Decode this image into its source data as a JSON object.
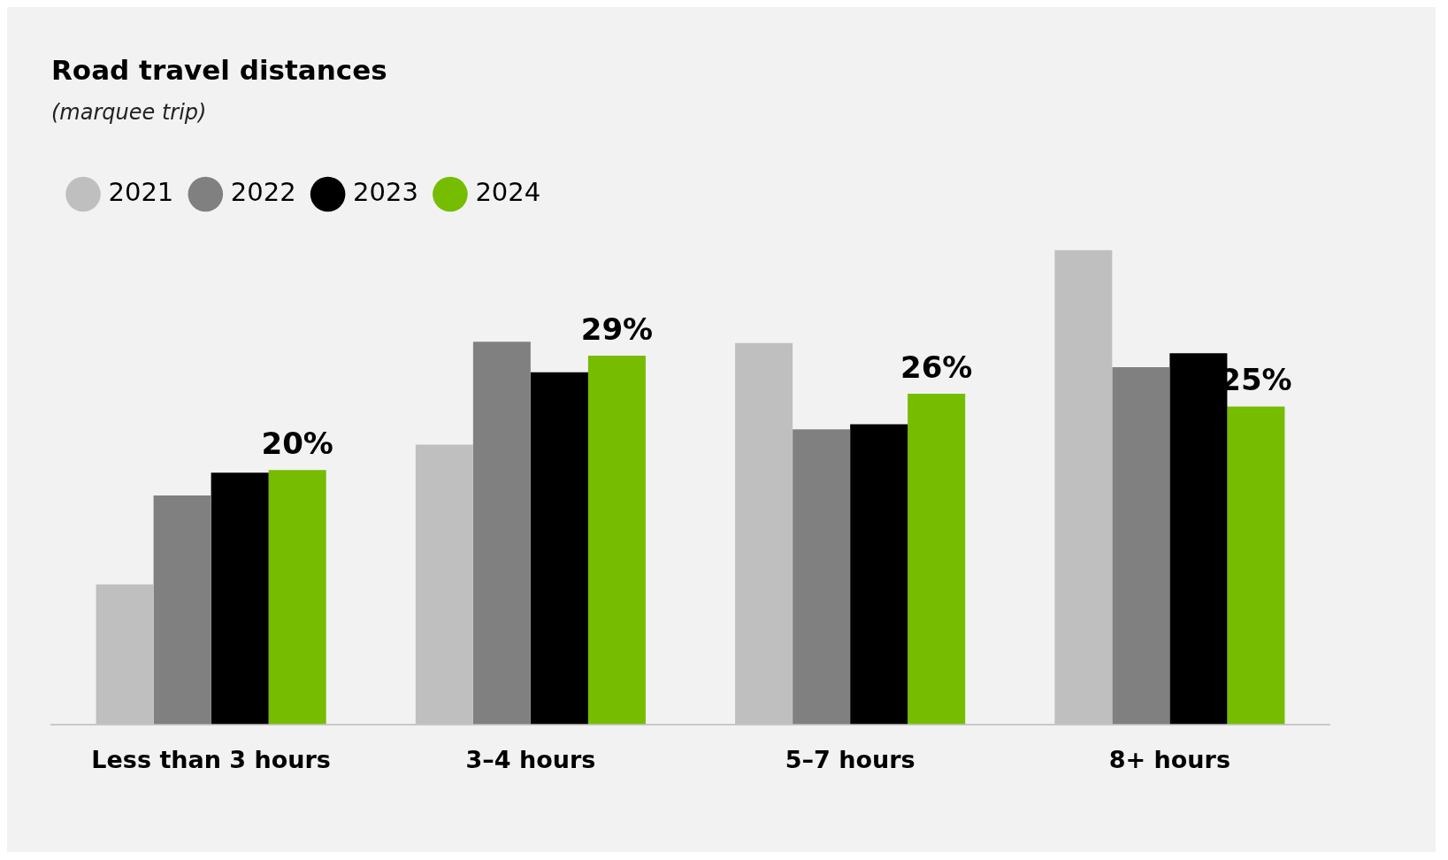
{
  "chart_data": {
    "type": "bar",
    "title": "Road travel distances",
    "subtitle": "(marquee trip)",
    "categories": [
      "Less than 3 hours",
      "3–4 hours",
      "5–7 hours",
      "8+ hours"
    ],
    "series": [
      {
        "name": "2021",
        "color": "#bfbfbf",
        "values": [
          11.0,
          22.0,
          30.0,
          37.3
        ]
      },
      {
        "name": "2022",
        "color": "#808080",
        "values": [
          18.0,
          30.1,
          23.2,
          28.1
        ]
      },
      {
        "name": "2023",
        "color": "#000000",
        "values": [
          19.8,
          27.7,
          23.6,
          29.2
        ]
      },
      {
        "name": "2024",
        "color": "#76bc00",
        "values": [
          20,
          29,
          26,
          25
        ],
        "value_labels": [
          "20%",
          "29%",
          "26%",
          "25%"
        ]
      }
    ],
    "legend": "top left",
    "grid": false,
    "tick_labels": "x"
  }
}
